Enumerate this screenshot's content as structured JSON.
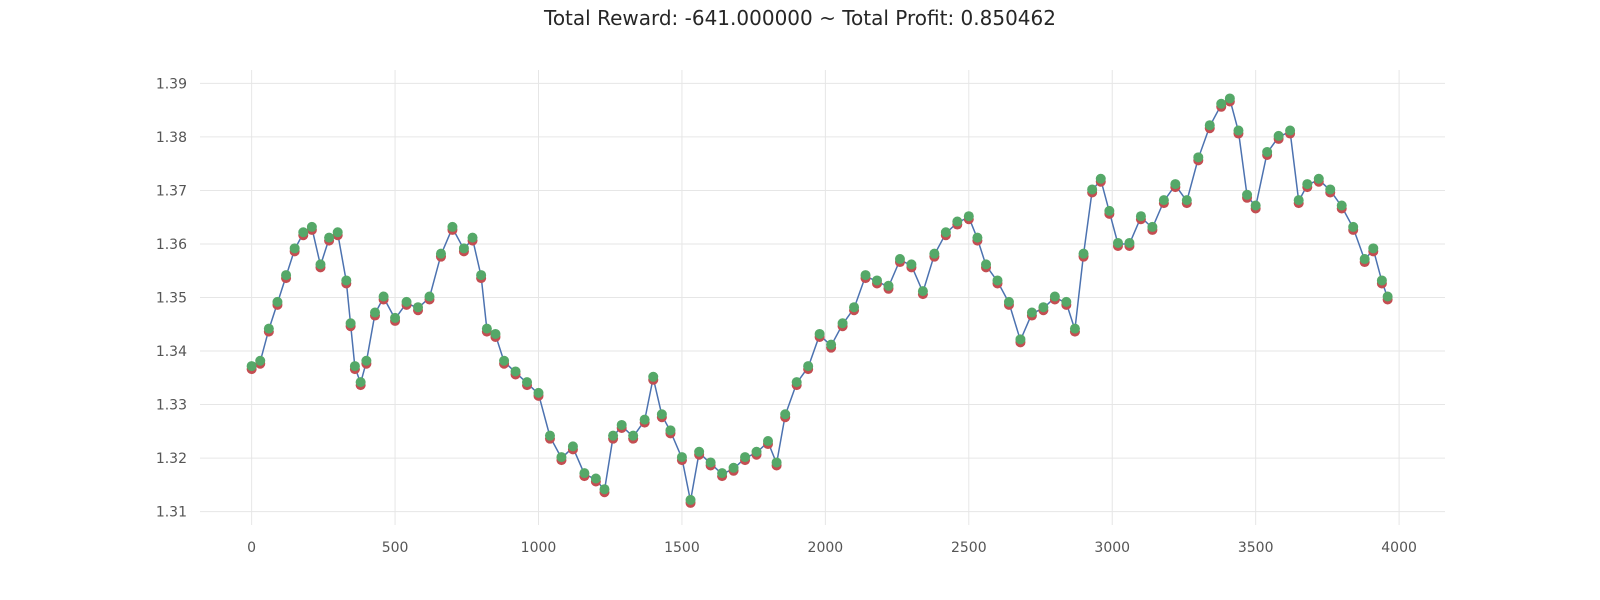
{
  "chart_data": {
    "type": "line",
    "title": "Total Reward: -641.000000 ~ Total Profit: 0.850462",
    "xlabel": "",
    "ylabel": "",
    "xlim": [
      -180,
      4160
    ],
    "ylim": [
      1.3075,
      1.3925
    ],
    "x_ticks": [
      0,
      500,
      1000,
      1500,
      2000,
      2500,
      3000,
      3500,
      4000
    ],
    "y_ticks": [
      1.31,
      1.32,
      1.33,
      1.34,
      1.35,
      1.36,
      1.37,
      1.38,
      1.39
    ],
    "grid": true,
    "colors": {
      "line": "#4c72b0",
      "short_marker": "#c44e52",
      "long_marker": "#55a868"
    },
    "series": [
      {
        "x": [
          0,
          30,
          60,
          90,
          120,
          150,
          180,
          210,
          240,
          270,
          300,
          330,
          345,
          360,
          380,
          400,
          430,
          460,
          500,
          540,
          580,
          620,
          660,
          700,
          740,
          770,
          800,
          820,
          850,
          880,
          920,
          960,
          1000,
          1040,
          1080,
          1120,
          1160,
          1200,
          1230,
          1260,
          1290,
          1330,
          1370,
          1400,
          1430,
          1460,
          1500,
          1530,
          1560,
          1600,
          1640,
          1680,
          1720,
          1760,
          1800,
          1830,
          1860,
          1900,
          1940,
          1980,
          2020,
          2060,
          2100,
          2140,
          2180,
          2220,
          2260,
          2300,
          2340,
          2380,
          2420,
          2460,
          2500,
          2530,
          2560,
          2600,
          2640,
          2680,
          2720,
          2760,
          2800,
          2840,
          2870,
          2900,
          2930,
          2960,
          2990,
          3020,
          3060,
          3100,
          3140,
          3180,
          3220,
          3260,
          3300,
          3340,
          3380,
          3410,
          3440,
          3470,
          3500,
          3540,
          3580,
          3620,
          3650,
          3680,
          3720,
          3760,
          3800,
          3840,
          3880,
          3910,
          3940,
          3960
        ],
        "values": [
          1.337,
          1.338,
          1.344,
          1.349,
          1.354,
          1.359,
          1.362,
          1.363,
          1.356,
          1.361,
          1.362,
          1.353,
          1.345,
          1.337,
          1.334,
          1.338,
          1.347,
          1.35,
          1.346,
          1.349,
          1.348,
          1.35,
          1.358,
          1.363,
          1.359,
          1.361,
          1.354,
          1.344,
          1.343,
          1.338,
          1.336,
          1.334,
          1.332,
          1.324,
          1.32,
          1.322,
          1.317,
          1.316,
          1.314,
          1.324,
          1.326,
          1.324,
          1.327,
          1.335,
          1.328,
          1.325,
          1.32,
          1.312,
          1.321,
          1.319,
          1.317,
          1.318,
          1.32,
          1.321,
          1.323,
          1.319,
          1.328,
          1.334,
          1.337,
          1.343,
          1.341,
          1.345,
          1.348,
          1.354,
          1.353,
          1.352,
          1.357,
          1.356,
          1.351,
          1.358,
          1.362,
          1.364,
          1.365,
          1.361,
          1.356,
          1.353,
          1.349,
          1.342,
          1.347,
          1.348,
          1.35,
          1.349,
          1.344,
          1.358,
          1.37,
          1.372,
          1.366,
          1.36,
          1.36,
          1.365,
          1.363,
          1.368,
          1.371,
          1.368,
          1.376,
          1.382,
          1.386,
          1.387,
          1.381,
          1.369,
          1.367,
          1.377,
          1.38,
          1.381,
          1.368,
          1.371,
          1.372,
          1.37,
          1.367,
          1.363,
          1.357,
          1.359,
          1.353,
          1.35
        ]
      }
    ]
  }
}
